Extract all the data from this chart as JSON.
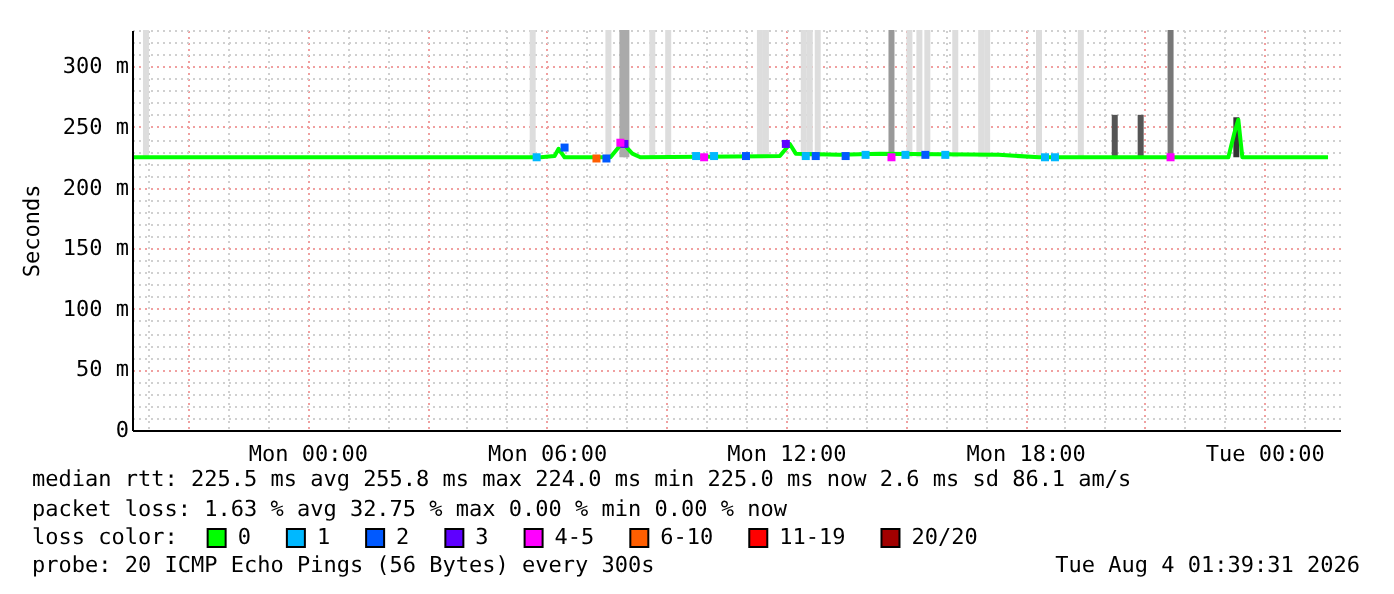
{
  "chart_data": {
    "type": "line",
    "ylabel": "Seconds",
    "legend_title": "loss color:",
    "legend": "bottom",
    "grid": true,
    "xlim": [
      "2026-08-02T19:36",
      "2026-08-04T01:54"
    ],
    "xticks": [
      {
        "value": "2026-08-02T20:00",
        "label": null
      },
      {
        "value": "2026-08-02T21:00",
        "label": null
      },
      {
        "value": "2026-08-02T22:00",
        "label": null
      },
      {
        "value": "2026-08-02T23:00",
        "label": null
      },
      {
        "value": "2026-08-03T00:00",
        "label": "Mon 00:00"
      },
      {
        "value": "2026-08-03T01:00",
        "label": null
      },
      {
        "value": "2026-08-03T02:00",
        "label": null
      },
      {
        "value": "2026-08-03T03:00",
        "label": null
      },
      {
        "value": "2026-08-03T04:00",
        "label": null
      },
      {
        "value": "2026-08-03T05:00",
        "label": null
      },
      {
        "value": "2026-08-03T06:00",
        "label": "Mon 06:00"
      },
      {
        "value": "2026-08-03T07:00",
        "label": null
      },
      {
        "value": "2026-08-03T08:00",
        "label": null
      },
      {
        "value": "2026-08-03T09:00",
        "label": null
      },
      {
        "value": "2026-08-03T10:00",
        "label": null
      },
      {
        "value": "2026-08-03T11:00",
        "label": null
      },
      {
        "value": "2026-08-03T12:00",
        "label": "Mon 12:00"
      },
      {
        "value": "2026-08-03T13:00",
        "label": null
      },
      {
        "value": "2026-08-03T14:00",
        "label": null
      },
      {
        "value": "2026-08-03T15:00",
        "label": null
      },
      {
        "value": "2026-08-03T16:00",
        "label": null
      },
      {
        "value": "2026-08-03T17:00",
        "label": null
      },
      {
        "value": "2026-08-03T18:00",
        "label": "Mon 18:00"
      },
      {
        "value": "2026-08-03T19:00",
        "label": null
      },
      {
        "value": "2026-08-03T20:00",
        "label": null
      },
      {
        "value": "2026-08-03T21:00",
        "label": null
      },
      {
        "value": "2026-08-03T22:00",
        "label": null
      },
      {
        "value": "2026-08-03T23:00",
        "label": null
      },
      {
        "value": "2026-08-04T00:00",
        "label": "Tue 00:00"
      },
      {
        "value": "2026-08-04T01:00",
        "label": null
      }
    ],
    "ylim": [
      0,
      330
    ],
    "yticks": [
      0,
      {
        "value": 10,
        "label": null
      },
      {
        "value": 20,
        "label": null
      },
      {
        "value": 30,
        "label": null
      },
      {
        "value": 40,
        "label": null
      },
      {
        "value": 50,
        "label": "50 m"
      },
      {
        "value": 60,
        "label": null
      },
      {
        "value": 70,
        "label": null
      },
      {
        "value": 80,
        "label": null
      },
      {
        "value": 90,
        "label": null
      },
      {
        "value": 100,
        "label": "100 m"
      },
      {
        "value": 110,
        "label": null
      },
      {
        "value": 120,
        "label": null
      },
      {
        "value": 130,
        "label": null
      },
      {
        "value": 140,
        "label": null
      },
      {
        "value": 150,
        "label": "150 m"
      },
      {
        "value": 160,
        "label": null
      },
      {
        "value": 170,
        "label": null
      },
      {
        "value": 180,
        "label": null
      },
      {
        "value": 190,
        "label": null
      },
      {
        "value": 200,
        "label": "200 m"
      },
      {
        "value": 210,
        "label": null
      },
      {
        "value": 220,
        "label": null
      },
      {
        "value": 230,
        "label": null
      },
      {
        "value": 240,
        "label": null
      },
      {
        "value": 250,
        "label": "250 m"
      },
      {
        "value": 260,
        "label": null
      },
      {
        "value": 270,
        "label": null
      },
      {
        "value": 280,
        "label": null
      },
      {
        "value": 290,
        "label": null
      },
      {
        "value": 300,
        "label": "300 m"
      },
      {
        "value": 310,
        "label": null
      },
      {
        "value": 320,
        "label": null
      },
      {
        "value": 330,
        "label": null
      }
    ],
    "series": [
      {
        "type": "bar",
        "x": [
          "2026-08-02T19:57",
          "2026-08-03T05:39",
          "2026-08-03T07:33",
          "2026-08-03T07:54",
          "2026-08-03T08:00",
          "2026-08-03T08:39",
          "2026-08-03T09:03",
          "2026-08-03T11:21",
          "2026-08-03T11:30",
          "2026-08-03T12:27",
          "2026-08-03T12:36",
          "2026-08-03T12:48",
          "2026-08-03T14:39",
          "2026-08-03T15:06",
          "2026-08-03T15:21",
          "2026-08-03T15:33",
          "2026-08-03T16:15",
          "2026-08-03T16:54",
          "2026-08-03T17:03",
          "2026-08-03T18:21",
          "2026-08-03T19:24",
          "2026-08-03T20:15",
          "2026-08-03T20:54",
          "2026-08-03T21:39",
          "2026-08-03T23:18"
        ],
        "base": [
          225,
          225,
          225,
          225,
          225,
          225,
          225,
          225,
          225,
          225,
          225,
          225,
          225,
          225,
          225,
          225,
          225,
          225,
          225,
          225,
          225,
          225,
          225,
          225,
          225
        ],
        "values": [
          105,
          105,
          105,
          105,
          105,
          105,
          105,
          105,
          105,
          105,
          105,
          105,
          105,
          105,
          105,
          105,
          105,
          105,
          105,
          105,
          105,
          35,
          35,
          105,
          33
        ],
        "colors": [
          "#dddddd",
          "#dddddd",
          "#dddddd",
          "#aaaaaa",
          "#aaaaaa",
          "#dddddd",
          "#dddddd",
          "#dddddd",
          "#dddddd",
          "#dddddd",
          "#dddddd",
          "#dddddd",
          "#999999",
          "#dddddd",
          "#dddddd",
          "#dddddd",
          "#dddddd",
          "#dddddd",
          "#dddddd",
          "#dddddd",
          "#dddddd",
          "#555555",
          "#555555",
          "#777777",
          "#333333"
        ]
      },
      {
        "name": "0",
        "color": "#00ff00",
        "x": [
          "2026-08-02T19:39",
          "2026-08-03T05:51",
          "2026-08-03T06:12",
          "2026-08-03T06:18",
          "2026-08-03T06:27",
          "2026-08-03T07:36",
          "2026-08-03T07:54",
          "2026-08-03T08:09",
          "2026-08-03T08:21",
          "2026-08-03T11:51",
          "2026-08-03T12:06",
          "2026-08-03T12:15",
          "2026-08-03T13:21",
          "2026-08-03T14:21",
          "2026-08-03T17:21",
          "2026-08-03T18:21",
          "2026-08-03T20:51",
          "2026-08-03T23:06",
          "2026-08-03T23:15",
          "2026-08-03T23:21",
          "2026-08-03T23:27",
          "2026-08-04T01:36"
        ],
        "values": [
          225,
          225,
          226,
          232,
          225,
          225,
          237,
          228,
          225,
          226,
          236,
          228,
          227,
          228,
          227,
          225,
          225,
          225,
          245,
          256,
          225,
          225
        ]
      },
      {
        "name": "1",
        "type": "scatter",
        "marker": "square",
        "color": "#00b8ff",
        "x": [
          "2026-08-03T05:45",
          "2026-08-03T09:45",
          "2026-08-03T10:12",
          "2026-08-03T12:30",
          "2026-08-03T14:00",
          "2026-08-03T15:00",
          "2026-08-03T16:00",
          "2026-08-03T18:30",
          "2026-08-03T18:45"
        ],
        "values": [
          225,
          226,
          226,
          226,
          227,
          227,
          227,
          225,
          225
        ]
      },
      {
        "name": "2",
        "type": "scatter",
        "marker": "square",
        "color": "#0059ff",
        "x": [
          "2026-08-03T06:27",
          "2026-08-03T07:30",
          "2026-08-03T11:00",
          "2026-08-03T12:45",
          "2026-08-03T13:30",
          "2026-08-03T15:30"
        ],
        "values": [
          233,
          224,
          226,
          226,
          226,
          227
        ]
      },
      {
        "name": "3",
        "type": "scatter",
        "marker": "square",
        "color": "#5e00ff",
        "x": [
          "2026-08-03T07:57",
          "2026-08-03T12:00"
        ],
        "values": [
          236,
          236
        ]
      },
      {
        "name": "4-5",
        "type": "scatter",
        "marker": "square",
        "color": "#ff00ff",
        "x": [
          "2026-08-03T07:51",
          "2026-08-03T09:57",
          "2026-08-03T14:39",
          "2026-08-03T21:39"
        ],
        "values": [
          237,
          225,
          225,
          225
        ]
      },
      {
        "name": "6-10",
        "type": "scatter",
        "marker": "square",
        "color": "#ff5e00",
        "x": [
          "2026-08-03T07:15"
        ],
        "values": [
          224
        ]
      },
      {
        "name": "11-19",
        "type": "scatter",
        "marker": "square",
        "color": "#ff0000"
      },
      {
        "name": "20/20",
        "type": "scatter",
        "marker": "square",
        "color": "#a10000"
      }
    ],
    "annotations": [
      "median rtt:  225.5 ms avg  255.8 ms max  224.0 ms min  225.0 ms now  2.6 ms sd  86.1   am/s",
      "packet loss: 1.63 % avg  32.75 % max  0.00 % min  0.00 % now",
      "probe:       20 ICMP Echo Pings (56 Bytes) every 300s",
      "Tue Aug  4 01:39:31 2026"
    ]
  }
}
